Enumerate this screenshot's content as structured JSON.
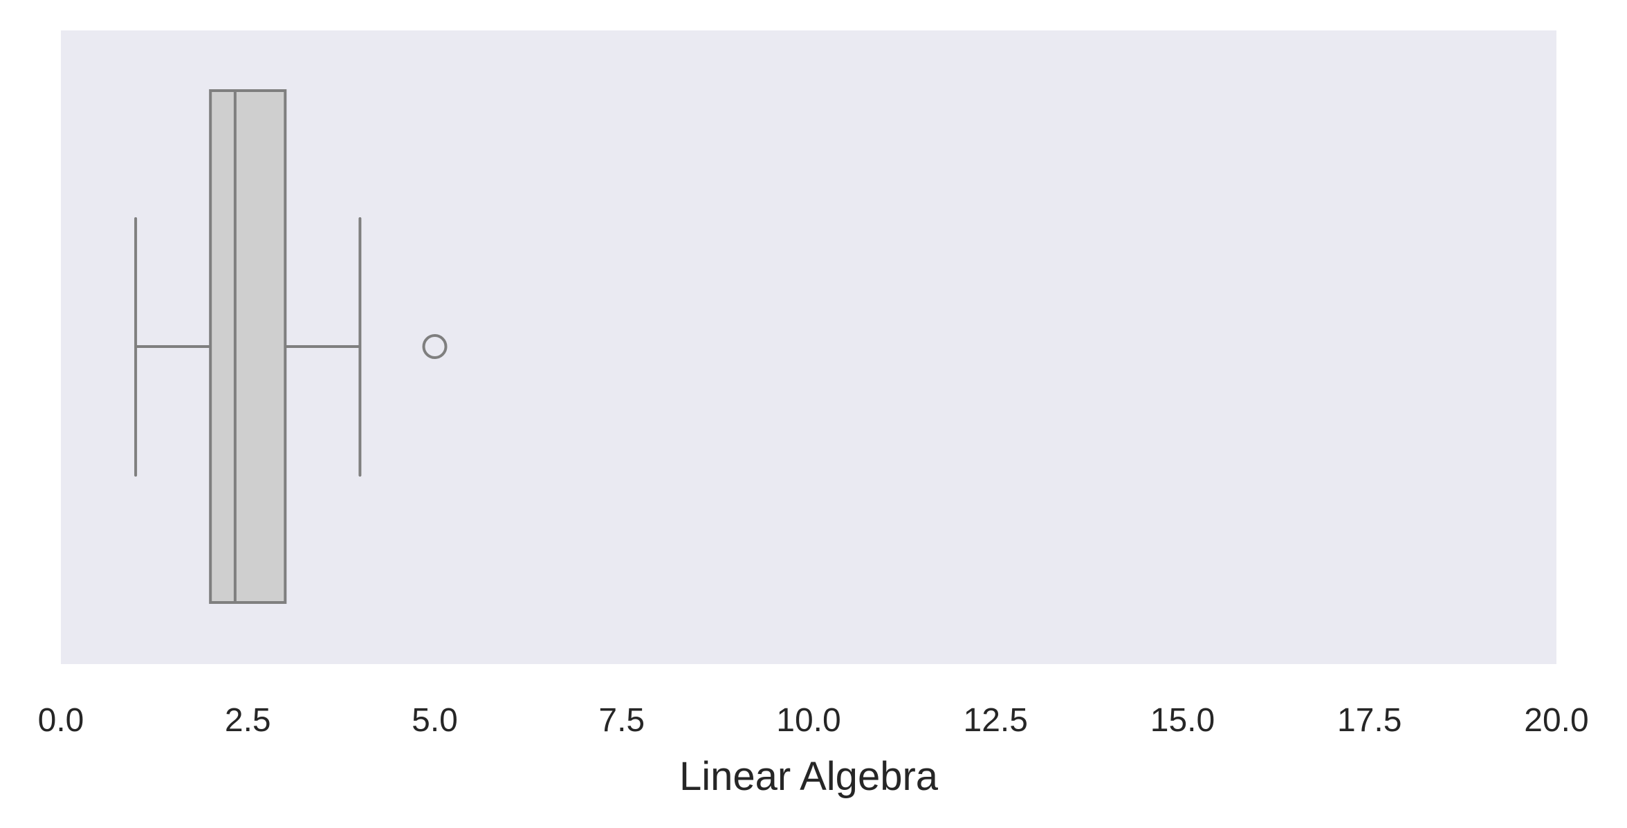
{
  "chart_data": {
    "type": "box",
    "orientation": "horizontal",
    "xlabel": "Linear Algebra",
    "ylabel": "",
    "title": "",
    "xlim": [
      0,
      20
    ],
    "xticks": [
      0.0,
      2.5,
      5.0,
      7.5,
      10.0,
      12.5,
      15.0,
      17.5,
      20.0
    ],
    "xtick_labels": [
      "0.0",
      "2.5",
      "5.0",
      "7.5",
      "10.0",
      "12.5",
      "15.0",
      "17.5",
      "20.0"
    ],
    "grid": false,
    "box": {
      "whisker_low": 1.0,
      "q1": 2.0,
      "median": 2.33,
      "q3": 3.0,
      "whisker_high": 4.0,
      "outliers": [
        5.0
      ]
    },
    "colors": {
      "plot_background": "#eaeaf2",
      "box_fill": "#cfcfcf",
      "box_line": "#7f7f7f",
      "text": "#262626"
    }
  }
}
